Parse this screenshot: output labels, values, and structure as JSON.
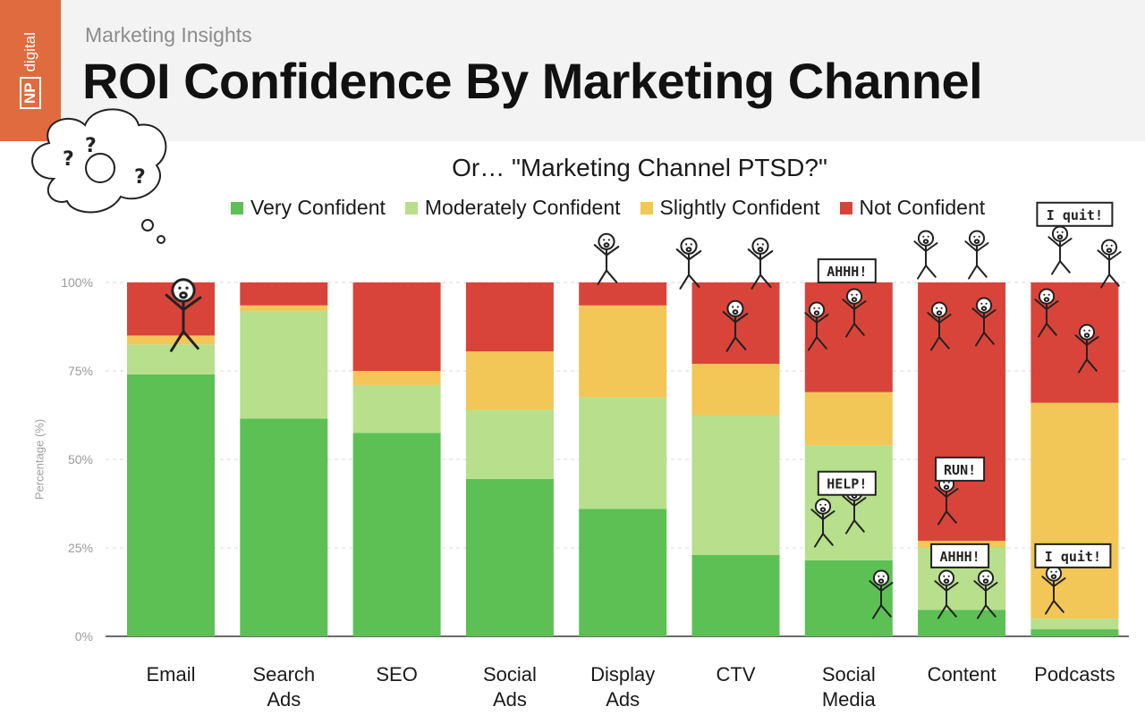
{
  "header": {
    "kicker": "Marketing Insights",
    "logo_np": "NP",
    "logo_digital": "digital"
  },
  "colors": {
    "very": "#5cc055",
    "moderately": "#b7df8c",
    "slightly": "#f2c657",
    "not": "#d9443a",
    "logo": "#e06b3f"
  },
  "chart_data": {
    "type": "bar",
    "stacked": true,
    "title": "ROI Confidence By Marketing Channel",
    "subtitle": "Or… \"Marketing Channel PTSD?\"",
    "xlabel": "",
    "ylabel": "Percentage (%)",
    "ylim": [
      0,
      100
    ],
    "yticks": [
      "0%",
      "25%",
      "50%",
      "75%",
      "100%"
    ],
    "categories": [
      [
        "Email"
      ],
      [
        "Search",
        "Ads"
      ],
      [
        "SEO"
      ],
      [
        "Social",
        "Ads"
      ],
      [
        "Display",
        "Ads"
      ],
      [
        "CTV"
      ],
      [
        "Social",
        "Media"
      ],
      [
        "Content"
      ],
      [
        "Podcasts"
      ]
    ],
    "series": [
      {
        "name": "Very Confident",
        "color_key": "very",
        "values": [
          74,
          61.5,
          57.5,
          44.5,
          36,
          23,
          21.5,
          7.5,
          2
        ]
      },
      {
        "name": "Moderately Confident",
        "color_key": "moderately",
        "values": [
          8.5,
          30.5,
          13.5,
          19.5,
          31.5,
          39.5,
          32.5,
          17.5,
          3
        ]
      },
      {
        "name": "Slightly Confident",
        "color_key": "slightly",
        "values": [
          2.5,
          1.5,
          4,
          16.5,
          26,
          14.5,
          15,
          2,
          61
        ]
      },
      {
        "name": "Not Confident",
        "color_key": "not",
        "values": [
          15,
          6.5,
          25,
          19.5,
          6.5,
          23,
          31,
          73,
          34
        ]
      }
    ],
    "grid": true,
    "legend": "top-center"
  },
  "annotations": [
    {
      "text": "AHHH!",
      "bar": 6,
      "pct": 103
    },
    {
      "text": "I quit!",
      "bar": 8,
      "pct": 119
    },
    {
      "text": "HELP!",
      "bar": 6,
      "pct": 43
    },
    {
      "text": "RUN!",
      "bar": 7,
      "pct": 47
    },
    {
      "text": "AHHH!",
      "bar": 7,
      "pct": 22.5
    },
    {
      "text": "I quit!",
      "bar": 8,
      "pct": 22.5
    }
  ]
}
